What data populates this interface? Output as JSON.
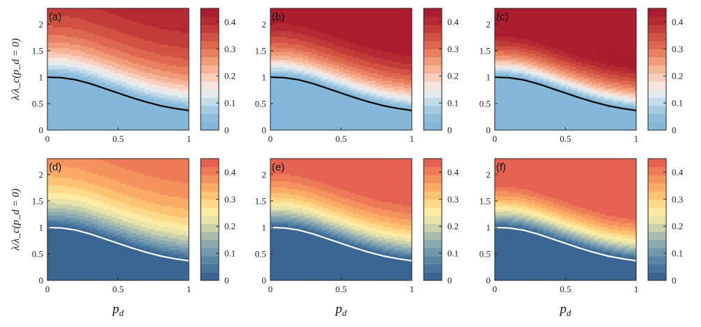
{
  "chart_data": {
    "type": "heatmap",
    "xlabel": "p_d",
    "ylabel": "λ/λ_c(p_d = 0)",
    "xlim": [
      0,
      1
    ],
    "ylim": [
      0,
      2.3
    ],
    "x_ticks": [
      "0",
      "0.5",
      "1"
    ],
    "y_ticks": [
      "0",
      "0.5",
      "1",
      "1.5",
      "2"
    ],
    "colorbar_ticks": [
      "0",
      "0.1",
      "0.2",
      "0.3",
      "0.4"
    ],
    "colorbar_range": [
      0,
      0.45
    ],
    "colorbar_levels": 15,
    "panels": [
      {
        "label": "(a)",
        "palette": "RdBu",
        "boundary_color": "#000000",
        "gain": 0.42,
        "jagged": 0
      },
      {
        "label": "(b)",
        "palette": "RdBu",
        "boundary_color": "#000000",
        "gain": 0.52,
        "jagged": 0.15
      },
      {
        "label": "(c)",
        "palette": "RdBu",
        "boundary_color": "#000000",
        "gain": 0.6,
        "jagged": 0.3
      },
      {
        "label": "(d)",
        "palette": "Spectral",
        "boundary_color": "#ffffff",
        "gain": 0.42,
        "jagged": 0
      },
      {
        "label": "(e)",
        "palette": "Spectral",
        "boundary_color": "#ffffff",
        "gain": 0.52,
        "jagged": 0.15
      },
      {
        "label": "(f)",
        "palette": "Spectral",
        "boundary_color": "#ffffff",
        "gain": 0.6,
        "jagged": 0.3
      }
    ],
    "critical_curve": {
      "p_d": [
        0,
        0.1,
        0.2,
        0.3,
        0.4,
        0.5,
        0.6,
        0.7,
        0.8,
        0.9,
        1.0
      ],
      "lambda_ratio": [
        1.0,
        0.99,
        0.95,
        0.88,
        0.79,
        0.7,
        0.61,
        0.53,
        0.46,
        0.41,
        0.37
      ]
    },
    "palettes": {
      "RdBu": [
        "#85b7d9",
        "#8ebddb",
        "#a4cbe2",
        "#c3dcea",
        "#e2ebf0",
        "#f5e5de",
        "#f8cfbc",
        "#f6b597",
        "#f19b78",
        "#e98161",
        "#de684f",
        "#d15243",
        "#c23c3a",
        "#b52a33",
        "#ab1d2d"
      ],
      "Spectral": [
        "#3b6693",
        "#46749c",
        "#5a86a6",
        "#7199ad",
        "#8ba9b1",
        "#a9bcb0",
        "#c9d1ab",
        "#e8e4a9",
        "#fdeba4",
        "#fed98a",
        "#fdc373",
        "#fbab66",
        "#f5935e",
        "#ee7b58",
        "#e56253"
      ]
    }
  }
}
